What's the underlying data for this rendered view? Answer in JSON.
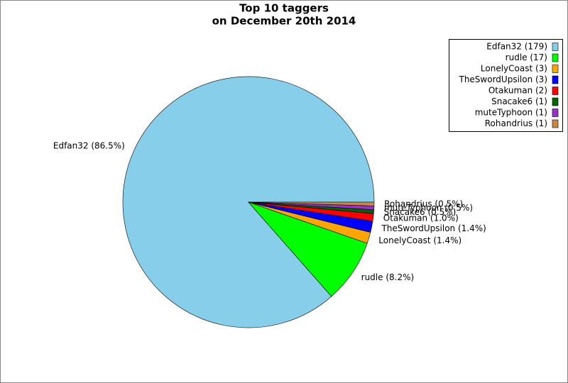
{
  "chart_data": {
    "type": "pie",
    "title": "Top 10 taggers",
    "subtitle": "on December 20th 2014",
    "categories": [
      "Edfan32",
      "rudle",
      "LonelyCoast",
      "TheSwordUpsilon",
      "Otakuman",
      "Snacake6",
      "muteTyphoon",
      "Rohandrius"
    ],
    "values": [
      179,
      17,
      3,
      3,
      2,
      1,
      1,
      1
    ],
    "value_labels": [
      "Edfan32 (179)",
      "rudle (17)",
      "LonelyCoast (3)",
      "TheSwordUpsilon (3)",
      "Otakuman (2)",
      "Snacake6 (1)",
      "muteTyphoon (1)",
      "Rohandrius (1)"
    ],
    "slice_labels": [
      "Edfan32 (86.5%)",
      "rudle (8.2%)",
      "LonelyCoast (1.4%)",
      "TheSwordUpsilon (1.4%)",
      "Otakuman (1.0%)",
      "Snacake6 (0.5%)",
      "muteTyphoon (0.5%)",
      "Rohandrius (0.5%)"
    ],
    "colors": [
      "#87ceeb",
      "#00ff00",
      "#ffa500",
      "#0000ff",
      "#ff0000",
      "#006400",
      "#9932cc",
      "#cd853f"
    ],
    "legend": "upper right"
  }
}
